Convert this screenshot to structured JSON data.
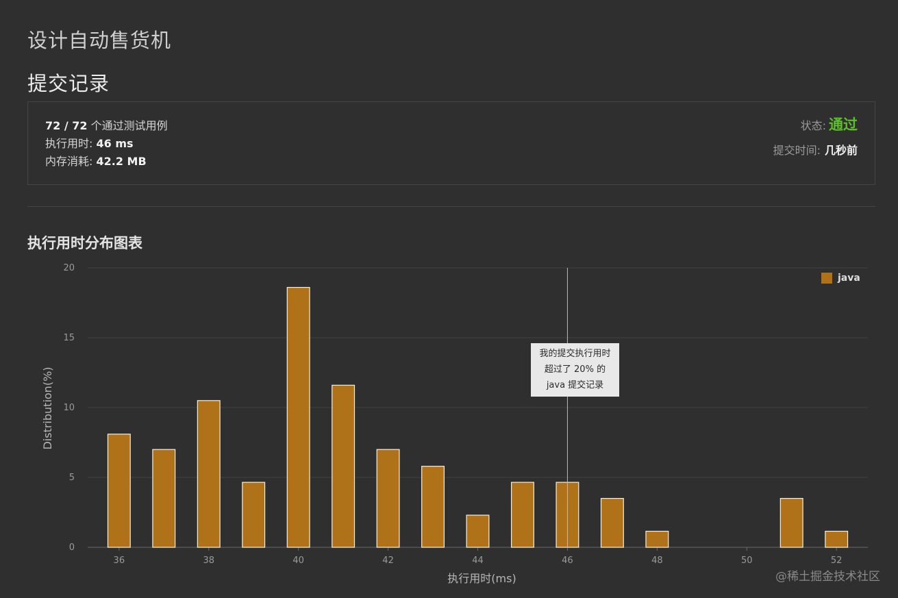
{
  "page": {
    "title": "设计自动售货机",
    "section_title": "提交记录"
  },
  "summary": {
    "passed": "72 / 72",
    "passed_suffix": " 个通过测试用例",
    "runtime_label": "执行用时: ",
    "runtime_value": "46 ms",
    "memory_label": "内存消耗: ",
    "memory_value": "42.2 MB",
    "status_label": "状态:",
    "status_value": "通过",
    "submit_time_label": "提交时间:",
    "submit_time_value": "几秒前"
  },
  "colors": {
    "bar_fill": "#b07219",
    "bar_stroke": "#f5f0e0",
    "status_green": "#5cbf2a"
  },
  "watermark": "@稀土掘金技术社区",
  "chart_data": {
    "type": "bar",
    "title": "执行用时分布图表",
    "xlabel": "执行用时(ms)",
    "ylabel": "Distribution(%)",
    "x": [
      36,
      37,
      38,
      39,
      40,
      41,
      42,
      43,
      44,
      45,
      46,
      47,
      48,
      51,
      52
    ],
    "series": [
      {
        "name": "java",
        "values": [
          8.1,
          7.0,
          10.5,
          4.65,
          18.6,
          11.6,
          7.0,
          5.8,
          2.3,
          4.65,
          4.65,
          3.5,
          1.15,
          3.5,
          1.15
        ]
      }
    ],
    "xlim": [
      35.3,
      52.7
    ],
    "ylim": [
      0,
      20
    ],
    "x_ticks": [
      36,
      38,
      40,
      42,
      44,
      46,
      48,
      50,
      52
    ],
    "y_ticks": [
      0,
      5,
      10,
      15,
      20
    ],
    "grid": true,
    "legend": "top-right",
    "highlight_x": 46,
    "tooltip_lines": [
      "我的提交执行用时",
      "超过了 20% 的",
      "java 提交记录"
    ]
  }
}
